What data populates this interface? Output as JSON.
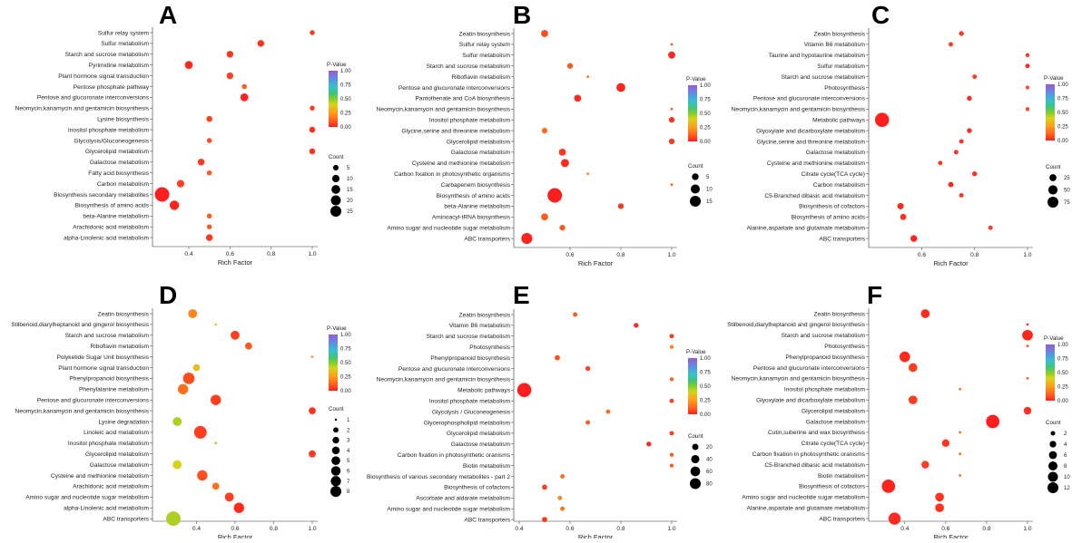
{
  "colors": {
    "pvalue_low": "#ff2a1a",
    "pvalue_high": "#9b59d0"
  },
  "legend_titles": {
    "pvalue": "P-Value",
    "count": "Count"
  },
  "chart_data": [
    {
      "type": "scatter",
      "panel": "A",
      "xlabel": "Rich Factor",
      "xlim": [
        0.25,
        1.0
      ],
      "xticks": [
        "0.4",
        "0.6",
        "0.8",
        "1.0"
      ],
      "pvalue_ticks": [
        "1.00",
        "0.75",
        "0.50",
        "0.25",
        "0.00"
      ],
      "count_ticks": [
        "5",
        "10",
        "15",
        "20",
        "25"
      ],
      "count_range": [
        1,
        25
      ],
      "categories": [
        "Sulfur relay system",
        "Sulfur metabolism",
        "Starch and sucrose metabolism",
        "Pyrimidine metabolism",
        "Plant hormone signal transduction",
        "Pentose phosphate pathway",
        "Pentose and glucuronate interconversions",
        "Neomycin,kanamycin and gentamicin biosynthesis",
        "Lysine biosynthesis",
        "Inositol phosphate metabolism",
        "Glycolysis/Gluconeogenesis",
        "Glycerolipid metabolism",
        "Galactose metabolism",
        "Fatty acid biosynthesis",
        "Carbon metabolism",
        "Biosynthesis secondary metabolites",
        "Biosynthesis of amino acids",
        "beta-Alanine metabolism",
        "Arachidonic acid metabolism",
        "alpha-Linolenic acid metabolism"
      ],
      "rich_factor": [
        1.0,
        0.75,
        0.6,
        0.4,
        0.6,
        0.67,
        0.67,
        1.0,
        0.5,
        1.0,
        0.5,
        1.0,
        0.46,
        0.5,
        0.36,
        0.27,
        0.33,
        0.5,
        0.5,
        0.5
      ],
      "count": [
        2,
        4,
        4,
        6,
        4,
        2,
        6,
        2,
        3,
        3,
        2,
        3,
        4,
        2,
        5,
        25,
        9,
        2,
        2,
        4
      ],
      "pvalue": [
        0.05,
        0.03,
        0.04,
        0.02,
        0.06,
        0.1,
        0.01,
        0.05,
        0.06,
        0.03,
        0.08,
        0.03,
        0.04,
        0.1,
        0.05,
        0.0,
        0.01,
        0.1,
        0.1,
        0.04
      ]
    },
    {
      "type": "scatter",
      "panel": "B",
      "xlabel": "Rich Factor",
      "xlim": [
        0.4,
        1.0
      ],
      "xticks": [
        "0.6",
        "0.8",
        "1.0"
      ],
      "pvalue_ticks": [
        "1.00",
        "0.75",
        "0.50",
        "0.25",
        "0.00"
      ],
      "count_ticks": [
        "5",
        "10",
        "15"
      ],
      "count_range": [
        1,
        15
      ],
      "categories": [
        "Zeatin biosynthesis",
        "Sulfur relay system",
        "Sulfur metabolism",
        "Starch and sucrose metabolism",
        "Riboflavin metabolism",
        "Pentose and glucuronate interconversions",
        "Pantothenate and CoA biosynthesis",
        "Neomycin,kanamycin and gentamicin biosynthesis",
        "Inositol phosphate metabolism",
        "Glycine,serine and threonine metabolism",
        "Glycerolipid metabolism",
        "Galactose metabolism",
        "Cysteine and methionine metabolism",
        "Carbon fixation in photosynthetic organisms",
        "Carbapenem biosynthesis",
        "Biosynthesis of amino acids",
        "beta-Alanine metabolism",
        "Aminoacyl-tRNA biosynthesis",
        "Amino sugar and nucleotide sugar metabolism",
        "ABC transporters"
      ],
      "rich_factor": [
        0.5,
        1.0,
        1.0,
        0.6,
        0.67,
        0.8,
        0.63,
        1.0,
        1.0,
        0.5,
        1.0,
        0.57,
        0.58,
        0.67,
        1.0,
        0.54,
        0.8,
        0.5,
        0.57,
        0.43
      ],
      "count": [
        3,
        1,
        3,
        2,
        1,
        5,
        3,
        1,
        2,
        2,
        2,
        3,
        4,
        1,
        1,
        15,
        2,
        3,
        2,
        8
      ],
      "pvalue": [
        0.08,
        0.1,
        0.01,
        0.1,
        0.15,
        0.01,
        0.02,
        0.1,
        0.03,
        0.15,
        0.04,
        0.04,
        0.02,
        0.2,
        0.1,
        0.0,
        0.04,
        0.1,
        0.1,
        0.01
      ]
    },
    {
      "type": "scatter",
      "panel": "C",
      "xlabel": "Rich Factor",
      "xlim": [
        0.42,
        1.0
      ],
      "xticks": [
        "0.6",
        "0.8",
        "1.0"
      ],
      "pvalue_ticks": [
        "1.00",
        "0.75",
        "0.50",
        "0.25",
        "0.00"
      ],
      "count_ticks": [
        "25",
        "50",
        "75"
      ],
      "count_range": [
        1,
        75
      ],
      "categories": [
        "Zeatin biosynthesis",
        "Vitamin B6 metabolism",
        "Taurine and hypotaurine metabolism",
        "Sulfur metabolism",
        "Starch and sucrose metabolism",
        "Photosynthesis",
        "Pentose and glucuronate interconversions",
        "Neomycin,kanamycin and gentamicin biosynthesis",
        "Metabolic pathways",
        "Glyoxylate and dicarboxylate metabolism",
        "Glycine,serine and threonine metabolism",
        "Galactose metabolism",
        "Cysteine and methionine metabolism",
        "Citrate cycle(TCA cycle)",
        "Carbon metabolism",
        "C5-Branched dibasic acid metabolism",
        "Biosynthesis of cofactors",
        "Biosynthesis of amino acids",
        "Alanine,aspartate and glutamate metabolism",
        "ABC transporters"
      ],
      "rich_factor": [
        0.75,
        0.71,
        1.0,
        1.0,
        0.8,
        1.0,
        0.78,
        1.0,
        0.45,
        0.78,
        0.75,
        0.73,
        0.67,
        0.8,
        0.71,
        0.75,
        0.52,
        0.53,
        0.86,
        0.57
      ],
      "count": [
        4,
        3,
        2,
        3,
        3,
        2,
        4,
        2,
        70,
        4,
        3,
        3,
        3,
        4,
        5,
        3,
        9,
        8,
        3,
        10
      ],
      "pvalue": [
        0.05,
        0.05,
        0.03,
        0.02,
        0.05,
        0.08,
        0.02,
        0.07,
        0.0,
        0.02,
        0.04,
        0.03,
        0.04,
        0.03,
        0.02,
        0.04,
        0.02,
        0.03,
        0.05,
        0.01
      ]
    },
    {
      "type": "scatter",
      "panel": "D",
      "xlabel": "Rich Factor",
      "xlim": [
        0.2,
        1.0
      ],
      "xticks": [
        "0.4",
        "0.6",
        "0.8",
        "1.0"
      ],
      "pvalue_ticks": [
        "1.00",
        "0.75",
        "0.50",
        "0.25",
        "0.00"
      ],
      "count_ticks": [
        "1",
        "2",
        "3",
        "4",
        "5",
        "6",
        "7",
        "8"
      ],
      "count_range": [
        1,
        8
      ],
      "categories": [
        "Zeatin biosynthesis",
        "Stilbenoid,diarylheptanoid and gingerol biosynthesis",
        "Starch and sucrose metabolism",
        "Riboflavin metabolism",
        "Polyketide Sugar Unit biosynthesis",
        "Plant hormone signal transduction",
        "Phenylpropanoid biosynthesis",
        "Phenylalanine metabolism",
        "Pentose and glucuronate interconversions",
        "Neomycin,kanamycin and gentamicin biosynthesis",
        "Lysine degradation",
        "Linoleic acid metabolism",
        "Inositol phosphate metabolism",
        "Glycerolipid metabolism",
        "Galactose metabolism",
        "Cysteine and methionine metabolism",
        "Arachidonic acid metabolism",
        "Amino sugar and nucleotide sugar metabolism",
        "alpha-Linolenic acid metabolism",
        "ABC transporters"
      ],
      "rich_factor": [
        0.38,
        0.5,
        0.6,
        0.67,
        1.0,
        0.4,
        0.36,
        0.33,
        0.5,
        1.0,
        0.3,
        0.42,
        0.5,
        1.0,
        0.3,
        0.43,
        0.5,
        0.57,
        0.62,
        0.28
      ],
      "count": [
        3,
        1,
        3,
        2,
        1,
        2,
        5,
        4,
        4,
        2,
        3,
        6,
        1,
        2,
        3,
        4,
        2,
        3,
        4,
        8
      ],
      "pvalue": [
        0.2,
        0.4,
        0.05,
        0.1,
        0.25,
        0.35,
        0.08,
        0.15,
        0.05,
        0.03,
        0.45,
        0.05,
        0.45,
        0.04,
        0.4,
        0.08,
        0.15,
        0.05,
        0.02,
        0.45
      ]
    },
    {
      "type": "scatter",
      "panel": "E",
      "xlabel": "Rich Factor",
      "xlim": [
        0.4,
        1.0
      ],
      "xticks": [
        "0.4",
        "0.6",
        "0.8",
        "1.0"
      ],
      "pvalue_ticks": [
        "1.00",
        "0.75",
        "0.50",
        "0.25",
        "0.00"
      ],
      "count_ticks": [
        "20",
        "40",
        "60",
        "80"
      ],
      "count_range": [
        1,
        80
      ],
      "categories": [
        "Zeatin biosynthesis",
        "Vitamin B6 metabolism",
        "Starch and sucrose metabolism",
        "Photosynthesis",
        "Phenylpropanoid biosynthesis",
        "Pentose and glucuronate interconversions",
        "Neomycin,kanamycin and gentamicin biosynthesis",
        "Metabolic pathways",
        "Inositol phosphate metabolism",
        "Glycolysis / Gluconeogenesis",
        "Glycerophospholipid metabolism",
        "Glycerolipid metabolism",
        "Galactose metabolism",
        "Carbon fixation in photosynthetic oranisms",
        "Biotin metabolism",
        "Biosynthesis of various secondary metabolites - part 2",
        "Biosynthesis of cofactors",
        "Ascorbate and aldarate metabolism",
        "Amino sugar and nucleotide sugar metabolism",
        "ABC transporters"
      ],
      "rich_factor": [
        0.62,
        0.86,
        1.0,
        1.0,
        0.55,
        0.67,
        1.0,
        0.42,
        1.0,
        0.75,
        0.67,
        1.0,
        0.91,
        1.0,
        1.0,
        0.57,
        0.5,
        0.56,
        0.57,
        0.5
      ],
      "count": [
        3,
        4,
        3,
        2,
        5,
        4,
        2,
        75,
        3,
        3,
        3,
        3,
        4,
        2,
        2,
        3,
        5,
        3,
        3,
        5
      ],
      "pvalue": [
        0.1,
        0.02,
        0.04,
        0.2,
        0.08,
        0.05,
        0.1,
        0.0,
        0.05,
        0.15,
        0.1,
        0.05,
        0.02,
        0.1,
        0.1,
        0.15,
        0.05,
        0.2,
        0.15,
        0.04
      ]
    },
    {
      "type": "scatter",
      "panel": "F",
      "xlabel": "Rich Factor",
      "xlim": [
        0.25,
        1.0
      ],
      "xticks": [
        "0.4",
        "0.6",
        "0.8",
        "1.0"
      ],
      "pvalue_ticks": [
        "1.00",
        "0.75",
        "0.50",
        "0.25",
        "0.00"
      ],
      "count_ticks": [
        "2",
        "4",
        "6",
        "8",
        "10",
        "12"
      ],
      "count_range": [
        1,
        12
      ],
      "categories": [
        "Zeatin biosynthesis",
        "Stilbenoid,diarylheptanoid and gingerol biosynthesis",
        "Starch and sucrose metabolism",
        "Photosynthesis",
        "Phenylpropanoid biosynthesis",
        "Pentose and glucuronate interconversions",
        "Neomycin,kanamycin and gentamicin biosynthesis",
        "Inositol phosphate metabolism",
        "Glyoxylate and dicarboxylate metabolism",
        "Glycerolipid metabolism",
        "Galactose metabolism",
        "Cutin,suberine and wax biosynthesis",
        "Citrate cycle(TCA cycle)",
        "Carbon fixation in photosynthetic oranisms",
        "C5-Branched dibasic acid metabolism",
        "Biotin metabolism",
        "Biosynthesis of cofactors",
        "Amino sugar and nucleotide sugar metabolism",
        "Alanine,aspartate and glutamate metabolism",
        "ABC transporters"
      ],
      "rich_factor": [
        0.5,
        1.0,
        1.0,
        1.0,
        0.4,
        0.44,
        1.0,
        0.67,
        0.44,
        1.0,
        0.83,
        0.67,
        0.6,
        0.67,
        0.5,
        0.67,
        0.32,
        0.57,
        0.57,
        0.35
      ],
      "count": [
        4,
        1,
        6,
        1,
        6,
        4,
        1,
        1,
        4,
        3,
        10,
        1,
        3,
        1,
        3,
        1,
        10,
        4,
        4,
        8
      ],
      "pvalue": [
        0.02,
        0.05,
        0.01,
        0.1,
        0.02,
        0.05,
        0.1,
        0.15,
        0.05,
        0.03,
        0.0,
        0.15,
        0.04,
        0.15,
        0.05,
        0.15,
        0.01,
        0.03,
        0.03,
        0.02
      ]
    }
  ]
}
